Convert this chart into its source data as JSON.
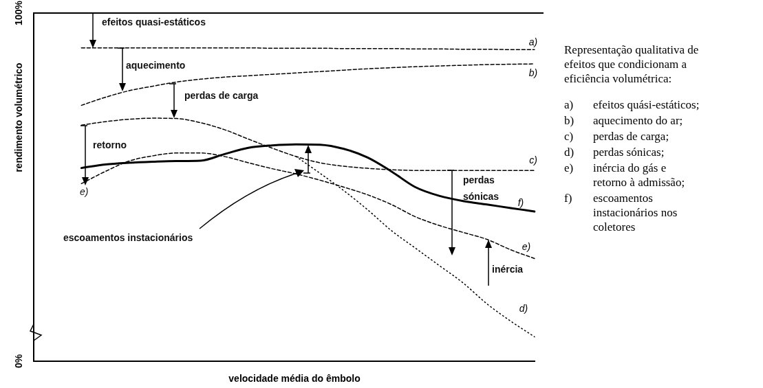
{
  "chart_data": {
    "type": "line",
    "ylabel": "rendimento volumétrico",
    "xlabel": "velocidade média do êmbolo",
    "categories": [
      null,
      null,
      null,
      null,
      null,
      null,
      null,
      null,
      null,
      null,
      null,
      null,
      null,
      null,
      null,
      null,
      null,
      null,
      null,
      null,
      null,
      null
    ],
    "ylim": [
      0,
      100
    ],
    "yticks": [
      {
        "value": 0,
        "label": "0%"
      },
      {
        "value": 100,
        "label": "100%"
      }
    ],
    "marker": "none",
    "legend": false,
    "series": [
      {
        "name": "a)",
        "color": "#000000",
        "line_style": "dashed",
        "values": [
          null,
          null,
          90,
          90,
          90,
          90,
          90,
          90,
          90,
          90,
          89.9,
          89.9,
          89.9,
          89.8,
          89.8,
          89.8,
          89.7,
          89.7,
          89.6,
          89.6,
          89.5,
          89.5
        ]
      },
      {
        "name": "b)",
        "color": "#000000",
        "line_style": "dashed",
        "values": [
          null,
          null,
          73.5,
          75.8,
          77.7,
          79,
          80.2,
          81,
          81.6,
          82,
          82.4,
          82.8,
          83.2,
          83.6,
          84,
          84.3,
          84.6,
          84.8,
          85,
          85.2,
          85.3,
          85.4
        ]
      },
      {
        "name": "c)",
        "color": "#000000",
        "line_style": "dashed",
        "values": [
          null,
          null,
          67.8,
          68.8,
          69.5,
          69.8,
          69.7,
          68.5,
          66.5,
          63.8,
          61.2,
          58.8,
          57,
          56,
          55.4,
          55,
          54.8,
          54.8,
          54.8,
          54.8,
          54.8,
          54.8
        ]
      },
      {
        "name": "f)",
        "color": "#000000",
        "line_style": "solid",
        "values": [
          null,
          null,
          55.5,
          56.5,
          57,
          57.3,
          57.5,
          57.6,
          59.5,
          61.3,
          62,
          62.3,
          62.2,
          61,
          58.5,
          54.5,
          50,
          47.5,
          46,
          45,
          44,
          43
        ]
      },
      {
        "name": "e)",
        "color": "#000000",
        "line_style": "dashed",
        "values": [
          null,
          null,
          51,
          54.5,
          57.5,
          59,
          59.8,
          59.8,
          58.8,
          57,
          55.3,
          53.8,
          52,
          50,
          47.8,
          45,
          41.5,
          39,
          37,
          35,
          32,
          29.5
        ]
      },
      {
        "name": "d)",
        "color": "#000000",
        "line_style": "dotted",
        "values": [
          null,
          null,
          null,
          null,
          null,
          null,
          null,
          null,
          null,
          null,
          null,
          58.8,
          54,
          49,
          43.5,
          37.5,
          32.5,
          27.5,
          22.5,
          16.5,
          11.5,
          7
        ]
      }
    ],
    "annotations": [
      "efeitos quasi-estáticos",
      "aquecimento",
      "perdas de carga",
      "retorno",
      "escoamentos instacionários",
      "perdas sónicas",
      "inércia",
      "e)",
      "Representação qualitativa de efeitos que condicionam a eficiência volumétrica:",
      "a) efeitos quási-estáticos;",
      "b) aquecimento do ar;",
      "c) perdas de carga;",
      "d) perdas sónicas;",
      "e) inércia do gás e retorno à admissão;",
      "f) escoamentos instacionários nos coletores"
    ]
  }
}
